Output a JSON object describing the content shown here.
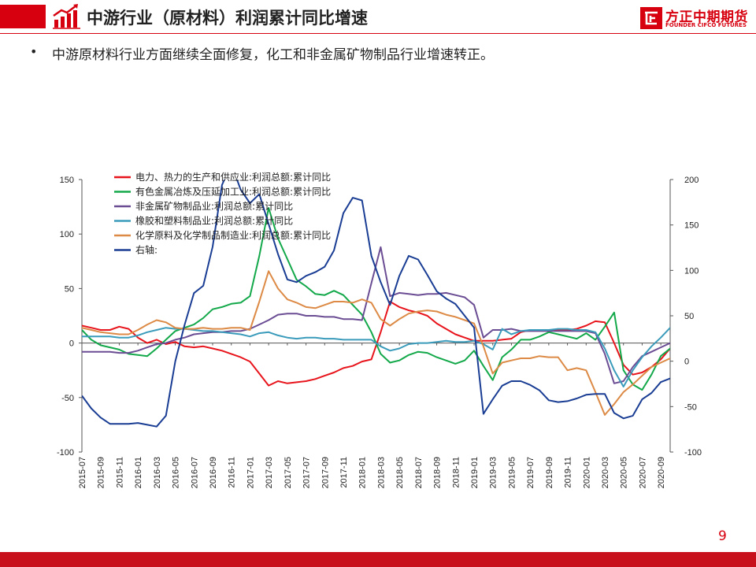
{
  "header": {
    "title": "中游行业（原材料）利润累计同比增速",
    "logo_cn": "方正中期期货",
    "logo_en": "FOUNDER CIFCO FUTURES",
    "brand_color": "#d7000f"
  },
  "bullet": "中游原材料行业方面继续全面修复，化工和非金属矿物制品行业增速转正。",
  "page_number": "9",
  "chart_data": {
    "type": "line",
    "title": "",
    "xlabel": "",
    "ylabel": "",
    "left_axis": {
      "range": [
        -100,
        150
      ],
      "ticks": [
        "150",
        "100",
        "50",
        "0",
        "-50",
        "-100"
      ]
    },
    "right_axis": {
      "range": [
        -100,
        200
      ],
      "ticks": [
        "200",
        "150",
        "100",
        "50",
        "0",
        "-50",
        "-100"
      ]
    },
    "x_tick_labels": [
      "2015-07",
      "2015-09",
      "2015-11",
      "2016-01",
      "2016-03",
      "2016-05",
      "2016-07",
      "2016-09",
      "2016-11",
      "2017-01",
      "2017-03",
      "2017-05",
      "2017-07",
      "2017-09",
      "2017-11",
      "2018-01",
      "2018-03",
      "2018-05",
      "2018-07",
      "2018-09",
      "2018-11",
      "2019-01",
      "2019-03",
      "2019-05",
      "2019-07",
      "2019-09",
      "2019-11",
      "2020-01",
      "2020-03",
      "2020-05",
      "2020-07",
      "2020-09"
    ],
    "x_start": "2015-07",
    "x_end": "2020-10",
    "legend_position": "top-left",
    "grid": false,
    "series": [
      {
        "name": "电力、热力的生产和供应业:利润总额:累计同比",
        "color": "#e8141c",
        "axis": "left",
        "values": [
          16,
          14,
          12,
          12,
          15,
          13,
          5,
          0,
          3,
          -1,
          1,
          -3,
          -4,
          -3,
          -5,
          -7,
          -10,
          -13,
          -17,
          -28,
          -39,
          -35,
          -37,
          -36,
          -35,
          -33,
          -30,
          -27,
          -23,
          -21,
          -17,
          -15,
          10,
          38,
          33,
          30,
          28,
          25,
          18,
          13,
          8,
          5,
          2,
          2,
          2,
          3,
          4,
          10,
          12,
          12,
          11,
          12,
          12,
          13,
          16,
          20,
          19,
          0,
          -20,
          -29,
          -27,
          -22,
          -15,
          -5,
          -1,
          1,
          2,
          5
        ]
      },
      {
        "name": "有色金属冶炼及压延加工业:利润总额:累计同比",
        "color": "#13a84a",
        "axis": "left",
        "values": [
          12,
          3,
          -2,
          -4,
          -6,
          -10,
          -11,
          -12,
          -5,
          3,
          11,
          14,
          17,
          23,
          31,
          33,
          36,
          37,
          43,
          80,
          124,
          96,
          77,
          58,
          52,
          45,
          44,
          48,
          44,
          35,
          26,
          10,
          -10,
          -18,
          -16,
          -11,
          -8,
          -9,
          -13,
          -16,
          -19,
          -16,
          -7,
          -21,
          -34,
          -13,
          -6,
          3,
          3,
          6,
          10,
          8,
          6,
          4,
          9,
          3,
          15,
          28,
          -25,
          -38,
          -43,
          -29,
          -12,
          -5,
          -3,
          1,
          5
        ]
      },
      {
        "name": "非金属矿物制品业:利润总额:累计同比",
        "color": "#6b4d94",
        "axis": "left",
        "values": [
          -8,
          -8,
          -8,
          -8,
          -9,
          -9,
          -7,
          -4,
          -1,
          0,
          3,
          5,
          8,
          9,
          10,
          10,
          11,
          11,
          13,
          17,
          21,
          26,
          27,
          27,
          25,
          25,
          24,
          24,
          22,
          22,
          21,
          55,
          88,
          43,
          46,
          45,
          44,
          45,
          45,
          46,
          44,
          42,
          35,
          5,
          12,
          12,
          13,
          11,
          11,
          11,
          11,
          11,
          11,
          11,
          11,
          9,
          -10,
          -37,
          -35,
          -22,
          -12,
          -8,
          -4,
          0,
          2,
          4
        ]
      },
      {
        "name": "橡胶和塑料制品业:利润总额:累计同比",
        "color": "#3b9bbb",
        "axis": "left",
        "values": [
          6,
          6,
          6,
          6,
          5,
          5,
          7,
          10,
          12,
          14,
          13,
          13,
          12,
          11,
          11,
          10,
          9,
          8,
          6,
          9,
          10,
          7,
          5,
          4,
          5,
          5,
          4,
          4,
          3,
          3,
          3,
          3,
          -3,
          -7,
          -5,
          -1,
          0,
          0,
          1,
          2,
          1,
          1,
          2,
          -1,
          -6,
          13,
          8,
          11,
          12,
          12,
          12,
          13,
          13,
          12,
          12,
          10,
          -5,
          -25,
          -40,
          -25,
          -13,
          -3,
          5,
          14,
          15,
          19,
          21,
          23
        ]
      },
      {
        "name": "化学原料及化学制品制造业:利润总额:累计同比",
        "color": "#dc8a45",
        "axis": "left",
        "values": [
          14,
          12,
          10,
          9,
          8,
          8,
          12,
          17,
          21,
          19,
          14,
          13,
          13,
          14,
          13,
          13,
          14,
          14,
          12,
          38,
          66,
          50,
          40,
          37,
          33,
          32,
          35,
          38,
          38,
          37,
          40,
          37,
          22,
          16,
          22,
          27,
          29,
          30,
          29,
          26,
          24,
          21,
          18,
          -3,
          -28,
          -18,
          -16,
          -14,
          -14,
          -12,
          -13,
          -13,
          -25,
          -23,
          -25,
          -45,
          -66,
          -56,
          -45,
          -38,
          -30,
          -22,
          -18,
          -14,
          -7,
          -3,
          0,
          3
        ]
      },
      {
        "name": "右轴:",
        "color": "#1a3d94",
        "axis": "right",
        "values": [
          -38,
          -52,
          -62,
          -69,
          -69,
          -69,
          -68,
          -70,
          -72,
          -60,
          0,
          40,
          75,
          83,
          126,
          194,
          217,
          189,
          174,
          184,
          151,
          118,
          90,
          87,
          94,
          98,
          104,
          122,
          163,
          180,
          177,
          116,
          87,
          62,
          94,
          116,
          112,
          95,
          77,
          69,
          63,
          50,
          37,
          -58,
          -42,
          -27,
          -22,
          -22,
          -26,
          -32,
          -43,
          -45,
          -44,
          -41,
          -37,
          -36,
          -36,
          -57,
          -63,
          -60,
          -42,
          -35,
          -23,
          -19,
          -13
        ]
      }
    ]
  }
}
